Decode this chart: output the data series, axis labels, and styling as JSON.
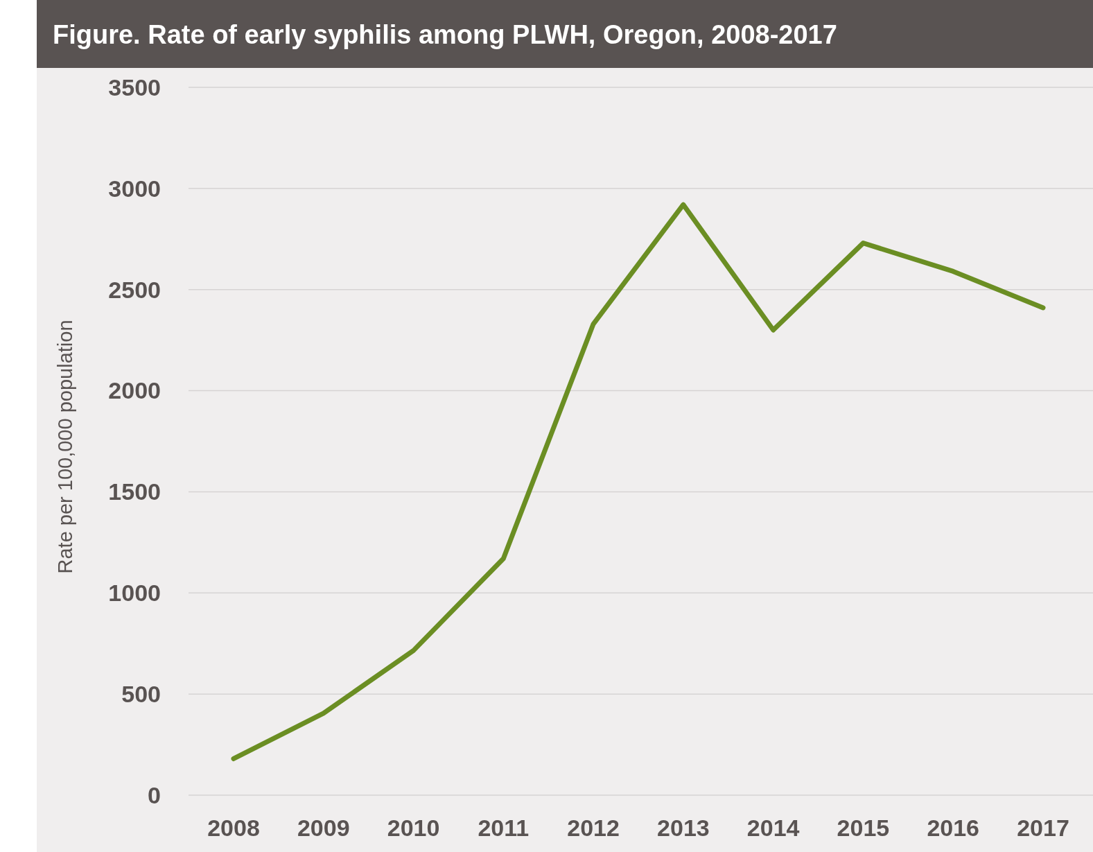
{
  "chart_data": {
    "type": "line",
    "title": "Figure. Rate of early syphilis among PLWH, Oregon, 2008-2017",
    "ylabel": "Rate per 100,000 population",
    "categories": [
      "2008",
      "2009",
      "2010",
      "2011",
      "2012",
      "2013",
      "2014",
      "2015",
      "2016",
      "2017"
    ],
    "series": [
      {
        "color": "#6b8e23",
        "values": [
          180,
          405,
          715,
          1170,
          2330,
          2920,
          2300,
          2730,
          2590,
          2410
        ]
      }
    ],
    "ylim": [
      0,
      3500
    ],
    "yticks": [
      0,
      500,
      1000,
      1500,
      2000,
      2500,
      3000,
      3500
    ],
    "grid": "y",
    "marker": "none",
    "line_style": "solid"
  }
}
